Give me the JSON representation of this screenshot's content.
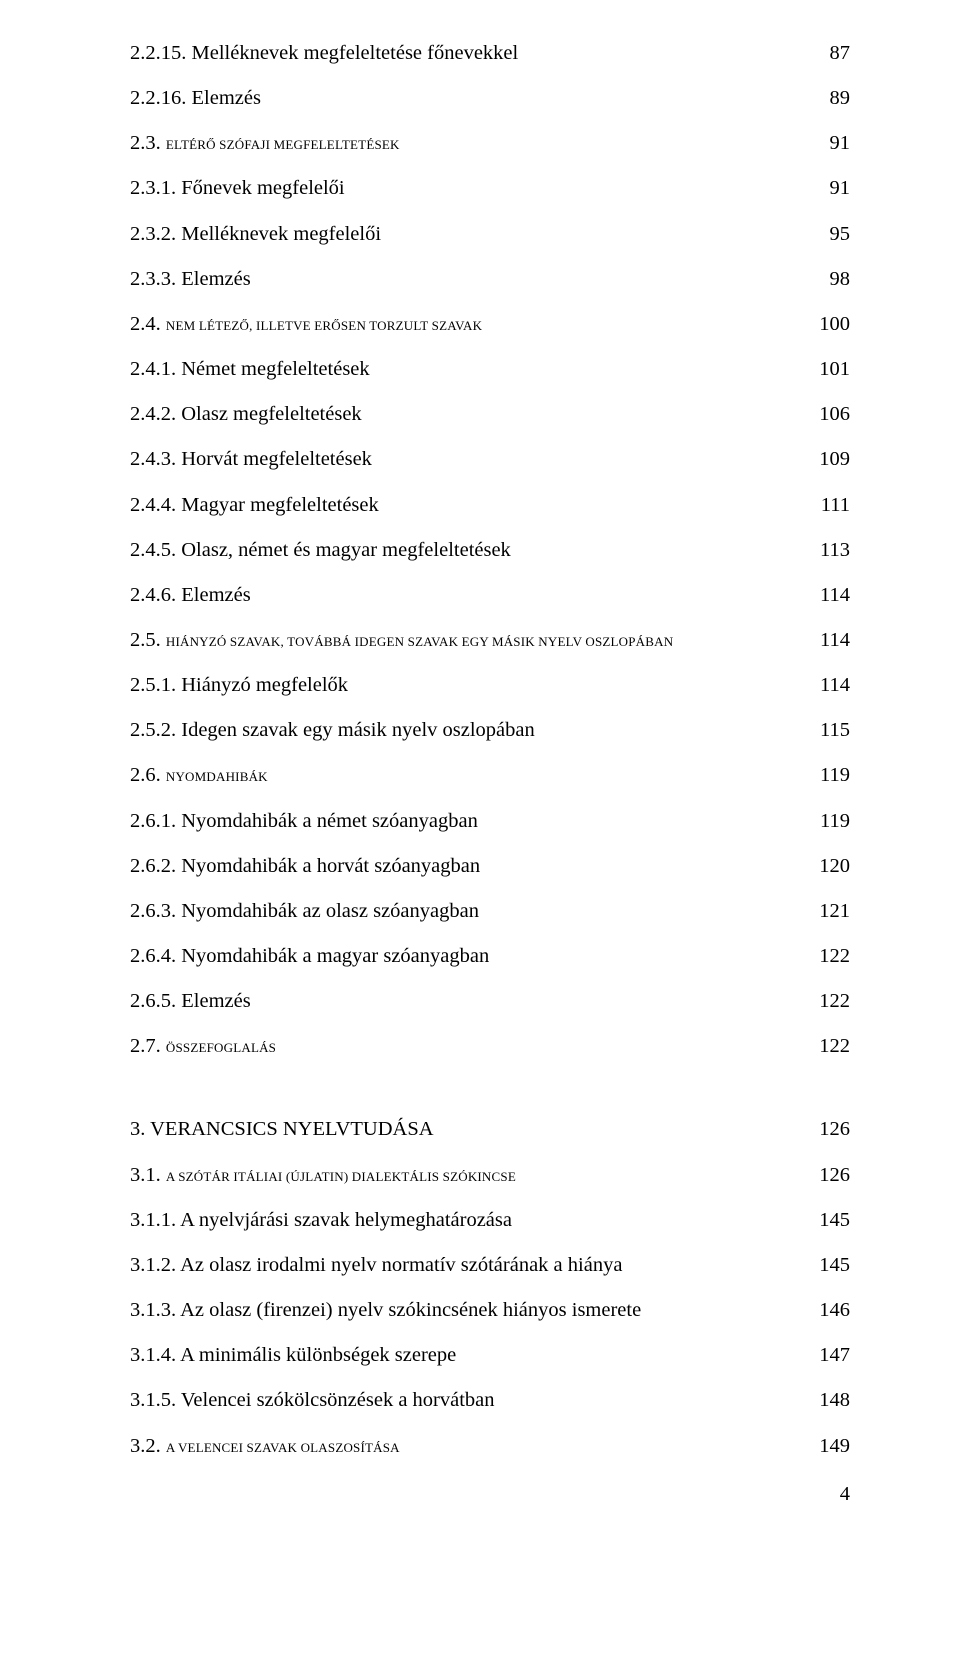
{
  "entries": [
    {
      "label": "2.2.15. Melléknevek megfeleltetése főnevekkel",
      "page": "87",
      "sc": false
    },
    {
      "label": "2.2.16. Elemzés",
      "page": "89",
      "sc": false
    },
    {
      "label": "2.3. ELTÉRŐ SZÓFAJI MEGFELELTETÉSEK",
      "page": "91",
      "sc": true
    },
    {
      "label": "2.3.1. Főnevek megfelelői",
      "page": "91",
      "sc": false
    },
    {
      "label": "2.3.2. Melléknevek megfelelői",
      "page": "95",
      "sc": false
    },
    {
      "label": "2.3.3. Elemzés",
      "page": "98",
      "sc": false
    },
    {
      "label": "2.4. NEM LÉTEZŐ, ILLETVE ERŐSEN TORZULT SZAVAK",
      "page": "100",
      "sc": true
    },
    {
      "label": "2.4.1. Német megfeleltetések",
      "page": "101",
      "sc": false
    },
    {
      "label": "2.4.2. Olasz megfeleltetések",
      "page": "106",
      "sc": false
    },
    {
      "label": "2.4.3. Horvát megfeleltetések",
      "page": "109",
      "sc": false
    },
    {
      "label": "2.4.4. Magyar megfeleltetések",
      "page": "111",
      "sc": false
    },
    {
      "label": "2.4.5. Olasz, német és magyar megfeleltetések",
      "page": "113",
      "sc": false
    },
    {
      "label": "2.4.6. Elemzés",
      "page": "114",
      "sc": false
    },
    {
      "label": "2.5. HIÁNYZÓ SZAVAK, TOVÁBBÁ IDEGEN SZAVAK EGY MÁSIK NYELV OSZLOPÁBAN",
      "page": "114",
      "sc": true
    },
    {
      "label": "2.5.1. Hiányzó megfelelők",
      "page": "114",
      "sc": false
    },
    {
      "label": "2.5.2. Idegen szavak egy másik nyelv oszlopában",
      "page": "115",
      "sc": false
    },
    {
      "label": "2.6. NYOMDAHIBÁK",
      "page": "119",
      "sc": true
    },
    {
      "label": "2.6.1. Nyomdahibák a német szóanyagban",
      "page": "119",
      "sc": false
    },
    {
      "label": "2.6.2. Nyomdahibák a horvát szóanyagban",
      "page": "120",
      "sc": false
    },
    {
      "label": "2.6.3. Nyomdahibák az olasz szóanyagban",
      "page": "121",
      "sc": false
    },
    {
      "label": "2.6.4. Nyomdahibák a magyar szóanyagban",
      "page": "122",
      "sc": false
    },
    {
      "label": "2.6.5. Elemzés",
      "page": "122",
      "sc": false
    },
    {
      "label": "2.7. ÖSSZEFOGLALÁS",
      "page": "122",
      "sc": true
    }
  ],
  "entries2": [
    {
      "label": "3. VERANCSICS NYELVTUDÁSA",
      "page": "126",
      "sc": false
    },
    {
      "label": "3.1. A SZÓTÁR ITÁLIAI (ÚJLATIN) DIALEKTÁLIS SZÓKINCSE",
      "page": "126",
      "sc": true
    },
    {
      "label": "3.1.1. A nyelvjárási szavak helymeghatározása",
      "page": "145",
      "sc": false
    },
    {
      "label": "3.1.2. Az olasz irodalmi nyelv normatív szótárának a hiánya",
      "page": "145",
      "sc": false
    },
    {
      "label": "3.1.3. Az olasz (firenzei) nyelv szókincsének hiányos ismerete",
      "page": "146",
      "sc": false
    },
    {
      "label": "3.1.4. A minimális különbségek szerepe",
      "page": "147",
      "sc": false
    },
    {
      "label": "3.1.5. Velencei szókölcsönzések a horvátban",
      "page": "148",
      "sc": false
    },
    {
      "label": "3.2. A VELENCEI SZAVAK OLASZOSÍTÁSA",
      "page": "149",
      "sc": true
    }
  ],
  "page_number": "4"
}
